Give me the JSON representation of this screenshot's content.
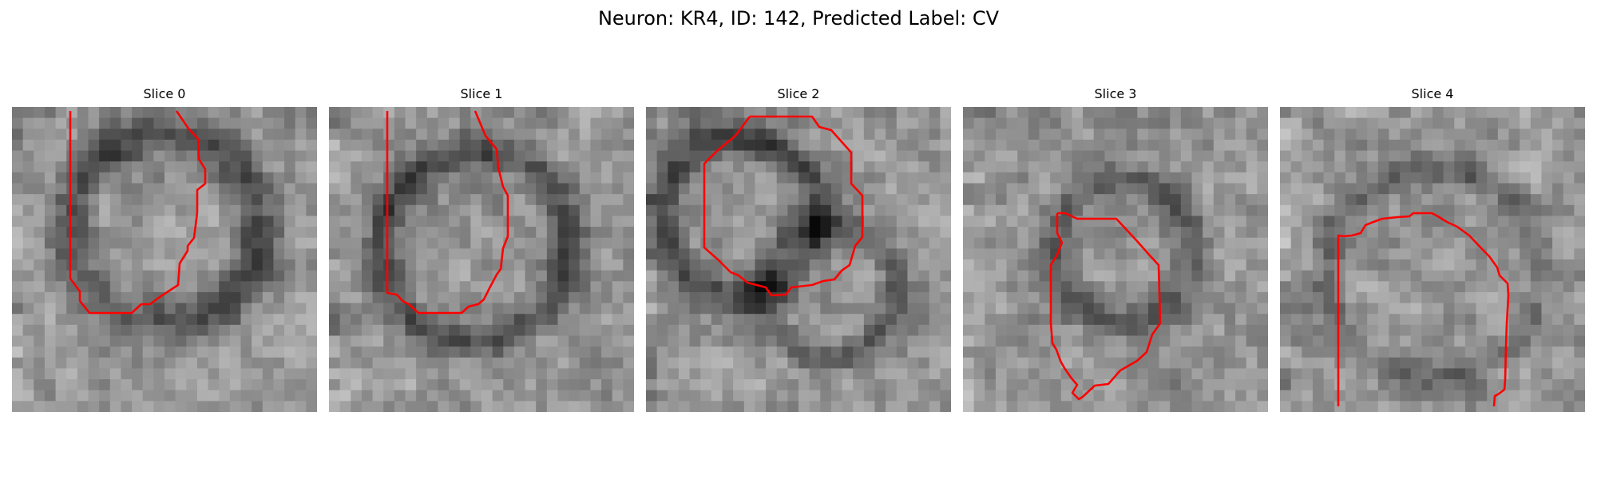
{
  "figure": {
    "title": "Neuron: KR4, ID: 142, Predicted Label: CV",
    "contour_color": "#ff0000",
    "colormap": "grayscale",
    "panels": [
      {
        "title": "Slice 0",
        "seed": 11,
        "contour_shape": "open boundary, left edge down to bottom then up the right side"
      },
      {
        "title": "Slice 1",
        "seed": 23,
        "contour_shape": "open boundary, left edge down to bottom then up the right side"
      },
      {
        "title": "Slice 2",
        "seed": 37,
        "contour_shape": "closed octagon-like loop"
      },
      {
        "title": "Slice 3",
        "seed": 53,
        "contour_shape": "closed elongated loop in lower center"
      },
      {
        "title": "Slice 4",
        "seed": 71,
        "contour_shape": "open arch from left bottom over top to right bottom"
      }
    ]
  }
}
